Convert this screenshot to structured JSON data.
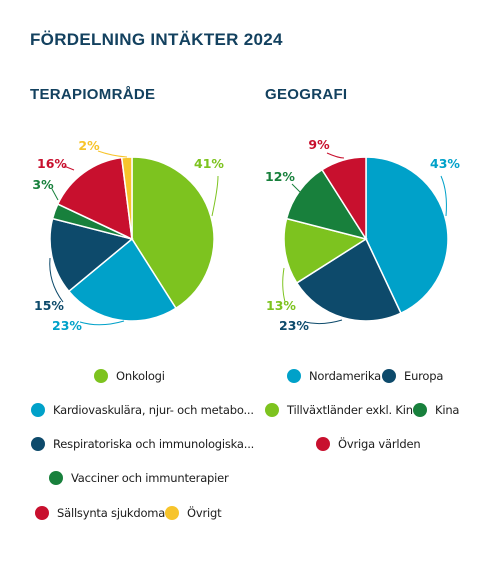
{
  "title": "FÖRDELNING INTÄKTER 2024",
  "chart_data": [
    {
      "type": "pie",
      "title": "TERAPIOMRÅDE",
      "categories": [
        "Onkologi",
        "Kardiovaskulära, njur- och metabo...",
        "Respiratoriska och immunologiska...",
        "Vacciner och immunterapier",
        "Sällsynta sjukdomar",
        "Övrigt"
      ],
      "values": [
        41,
        23,
        15,
        3,
        16,
        2
      ],
      "labels": [
        "41%",
        "23%",
        "15%",
        "3%",
        "16%",
        "2%"
      ],
      "colors": [
        "#7dc31f",
        "#00a1c9",
        "#0d4a6b",
        "#18803c",
        "#c8102e",
        "#f7c42b"
      ]
    },
    {
      "type": "pie",
      "title": "GEOGRAFI",
      "categories": [
        "Nordamerika",
        "Europa",
        "Tillväxtländer exkl. Kina",
        "Kina",
        "Övriga världen"
      ],
      "values": [
        43,
        23,
        13,
        12,
        9
      ],
      "labels": [
        "43%",
        "23%",
        "13%",
        "12%",
        "9%"
      ],
      "colors": [
        "#00a1c9",
        "#0d4a6b",
        "#7dc31f",
        "#18803c",
        "#c8102e"
      ]
    }
  ]
}
